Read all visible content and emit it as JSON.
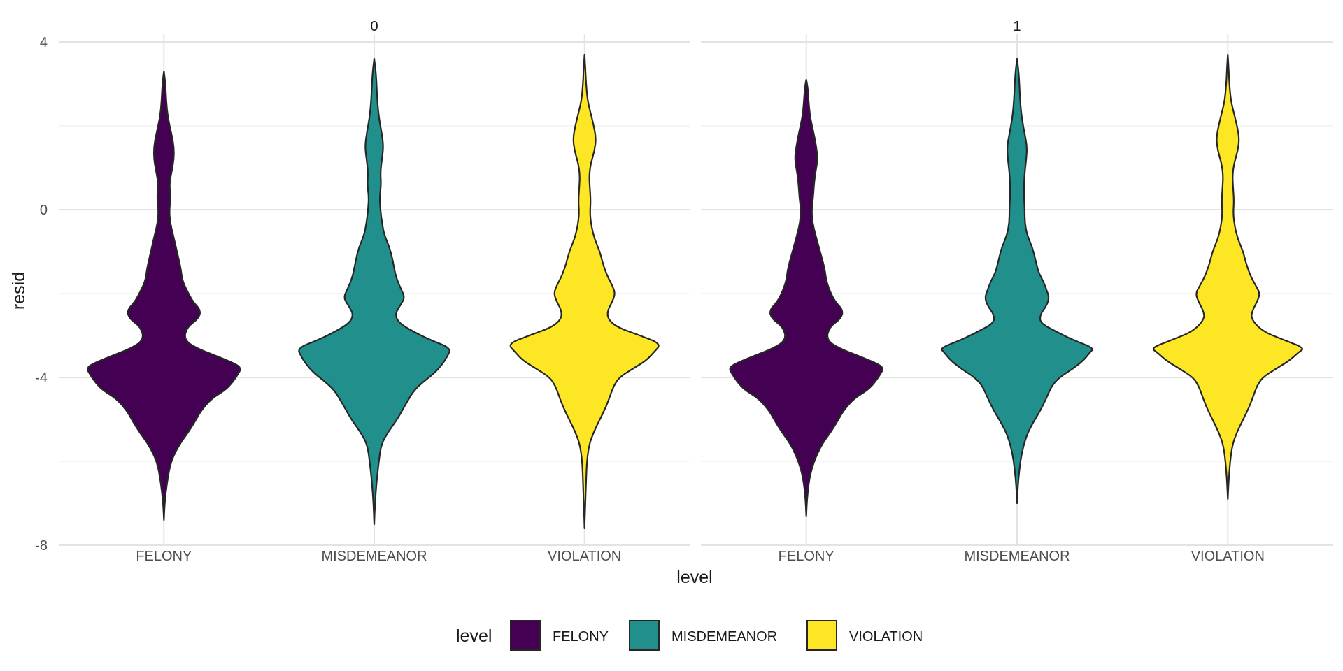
{
  "chart_data": {
    "type": "violin",
    "facet_variable_values": [
      "0",
      "1"
    ],
    "categories": [
      "FELONY",
      "MISDEMEANOR",
      "VIOLATION"
    ],
    "xlabel": "level",
    "ylabel": "resid",
    "ylim": [
      -8,
      4
    ],
    "y_ticks": [
      "4",
      "0",
      "-4",
      "-8"
    ],
    "y_tick_values": [
      4,
      0,
      -4,
      -8
    ],
    "grid": true,
    "legend": {
      "title": "level",
      "position": "bottom",
      "items": [
        {
          "label": "FELONY",
          "color": "#440154"
        },
        {
          "label": "MISDEMEANOR",
          "color": "#21908C"
        },
        {
          "label": "VIOLATION",
          "color": "#FDE725"
        }
      ]
    },
    "panels": [
      {
        "facet": "0",
        "violins": [
          {
            "category": "FELONY",
            "color": "#440154",
            "y_min": -7.4,
            "y_max": 3.3,
            "profile": [
              [
                -7.4,
                0.0
              ],
              [
                -7.0,
                0.01
              ],
              [
                -6.5,
                0.04
              ],
              [
                -6.0,
                0.09
              ],
              [
                -5.6,
                0.2
              ],
              [
                -5.3,
                0.32
              ],
              [
                -5.0,
                0.42
              ],
              [
                -4.8,
                0.48
              ],
              [
                -4.5,
                0.62
              ],
              [
                -4.3,
                0.8
              ],
              [
                -4.1,
                0.9
              ],
              [
                -3.9,
                0.97
              ],
              [
                -3.8,
                1.0
              ],
              [
                -3.7,
                0.96
              ],
              [
                -3.5,
                0.7
              ],
              [
                -3.3,
                0.42
              ],
              [
                -3.1,
                0.26
              ],
              [
                -2.8,
                0.3
              ],
              [
                -2.6,
                0.45
              ],
              [
                -2.4,
                0.48
              ],
              [
                -2.2,
                0.38
              ],
              [
                -2.0,
                0.32
              ],
              [
                -1.7,
                0.24
              ],
              [
                -1.4,
                0.22
              ],
              [
                -1.0,
                0.17
              ],
              [
                -0.6,
                0.12
              ],
              [
                -0.3,
                0.08
              ],
              [
                0.0,
                0.07
              ],
              [
                0.3,
                0.09
              ],
              [
                0.6,
                0.07
              ],
              [
                0.9,
                0.1
              ],
              [
                1.2,
                0.13
              ],
              [
                1.5,
                0.13
              ],
              [
                1.8,
                0.1
              ],
              [
                2.2,
                0.05
              ],
              [
                2.6,
                0.03
              ],
              [
                3.0,
                0.02
              ],
              [
                3.3,
                0.0
              ]
            ]
          },
          {
            "category": "MISDEMEANOR",
            "color": "#21908C",
            "y_min": -7.5,
            "y_max": 3.6,
            "profile": [
              [
                -7.5,
                0.0
              ],
              [
                -7.0,
                0.01
              ],
              [
                -6.5,
                0.03
              ],
              [
                -6.0,
                0.06
              ],
              [
                -5.6,
                0.09
              ],
              [
                -5.3,
                0.18
              ],
              [
                -5.0,
                0.3
              ],
              [
                -4.6,
                0.42
              ],
              [
                -4.3,
                0.52
              ],
              [
                -4.1,
                0.64
              ],
              [
                -3.9,
                0.78
              ],
              [
                -3.7,
                0.88
              ],
              [
                -3.5,
                0.95
              ],
              [
                -3.3,
                1.0
              ],
              [
                -3.1,
                0.72
              ],
              [
                -2.9,
                0.5
              ],
              [
                -2.7,
                0.32
              ],
              [
                -2.5,
                0.27
              ],
              [
                -2.3,
                0.33
              ],
              [
                -2.1,
                0.4
              ],
              [
                -1.9,
                0.35
              ],
              [
                -1.6,
                0.28
              ],
              [
                -1.2,
                0.24
              ],
              [
                -0.9,
                0.2
              ],
              [
                -0.6,
                0.13
              ],
              [
                -0.3,
                0.1
              ],
              [
                0.0,
                0.08
              ],
              [
                0.3,
                0.07
              ],
              [
                0.6,
                0.09
              ],
              [
                0.9,
                0.08
              ],
              [
                1.2,
                0.1
              ],
              [
                1.5,
                0.12
              ],
              [
                1.8,
                0.1
              ],
              [
                2.2,
                0.06
              ],
              [
                2.6,
                0.04
              ],
              [
                3.0,
                0.03
              ],
              [
                3.3,
                0.02
              ],
              [
                3.6,
                0.0
              ]
            ]
          },
          {
            "category": "VIOLATION",
            "color": "#FDE725",
            "y_min": -7.6,
            "y_max": 3.7,
            "profile": [
              [
                -7.6,
                0.0
              ],
              [
                -7.0,
                0.01
              ],
              [
                -6.5,
                0.02
              ],
              [
                -6.0,
                0.03
              ],
              [
                -5.6,
                0.06
              ],
              [
                -5.3,
                0.12
              ],
              [
                -5.0,
                0.2
              ],
              [
                -4.7,
                0.28
              ],
              [
                -4.4,
                0.34
              ],
              [
                -4.2,
                0.38
              ],
              [
                -4.0,
                0.45
              ],
              [
                -3.8,
                0.62
              ],
              [
                -3.6,
                0.8
              ],
              [
                -3.4,
                0.9
              ],
              [
                -3.2,
                1.0
              ],
              [
                -3.0,
                0.72
              ],
              [
                -2.8,
                0.42
              ],
              [
                -2.6,
                0.3
              ],
              [
                -2.4,
                0.3
              ],
              [
                -2.2,
                0.36
              ],
              [
                -2.0,
                0.4
              ],
              [
                -1.8,
                0.36
              ],
              [
                -1.6,
                0.3
              ],
              [
                -1.3,
                0.24
              ],
              [
                -1.0,
                0.2
              ],
              [
                -0.7,
                0.13
              ],
              [
                -0.4,
                0.09
              ],
              [
                -0.1,
                0.07
              ],
              [
                0.2,
                0.08
              ],
              [
                0.5,
                0.07
              ],
              [
                0.8,
                0.06
              ],
              [
                1.1,
                0.08
              ],
              [
                1.4,
                0.13
              ],
              [
                1.7,
                0.15
              ],
              [
                2.0,
                0.12
              ],
              [
                2.3,
                0.08
              ],
              [
                2.6,
                0.04
              ],
              [
                3.0,
                0.02
              ],
              [
                3.4,
                0.01
              ],
              [
                3.7,
                0.0
              ]
            ]
          }
        ]
      },
      {
        "facet": "1",
        "violins": [
          {
            "category": "FELONY",
            "color": "#440154",
            "y_min": -7.3,
            "y_max": 3.1,
            "profile": [
              [
                -7.3,
                0.0
              ],
              [
                -6.9,
                0.01
              ],
              [
                -6.4,
                0.04
              ],
              [
                -6.0,
                0.1
              ],
              [
                -5.6,
                0.2
              ],
              [
                -5.3,
                0.32
              ],
              [
                -5.0,
                0.42
              ],
              [
                -4.8,
                0.48
              ],
              [
                -4.5,
                0.62
              ],
              [
                -4.3,
                0.8
              ],
              [
                -4.1,
                0.9
              ],
              [
                -3.9,
                0.97
              ],
              [
                -3.8,
                1.0
              ],
              [
                -3.7,
                0.96
              ],
              [
                -3.5,
                0.7
              ],
              [
                -3.3,
                0.42
              ],
              [
                -3.1,
                0.26
              ],
              [
                -2.8,
                0.3
              ],
              [
                -2.6,
                0.45
              ],
              [
                -2.4,
                0.48
              ],
              [
                -2.2,
                0.38
              ],
              [
                -2.0,
                0.32
              ],
              [
                -1.7,
                0.26
              ],
              [
                -1.4,
                0.24
              ],
              [
                -1.0,
                0.18
              ],
              [
                -0.6,
                0.12
              ],
              [
                -0.3,
                0.08
              ],
              [
                0.0,
                0.07
              ],
              [
                0.3,
                0.09
              ],
              [
                0.6,
                0.1
              ],
              [
                0.9,
                0.12
              ],
              [
                1.2,
                0.15
              ],
              [
                1.5,
                0.13
              ],
              [
                1.8,
                0.1
              ],
              [
                2.2,
                0.05
              ],
              [
                2.6,
                0.03
              ],
              [
                2.9,
                0.02
              ],
              [
                3.1,
                0.0
              ]
            ]
          },
          {
            "category": "MISDEMEANOR",
            "color": "#21908C",
            "y_min": -7.0,
            "y_max": 3.6,
            "profile": [
              [
                -7.0,
                0.0
              ],
              [
                -6.6,
                0.01
              ],
              [
                -6.2,
                0.03
              ],
              [
                -5.8,
                0.06
              ],
              [
                -5.4,
                0.12
              ],
              [
                -5.1,
                0.2
              ],
              [
                -4.8,
                0.3
              ],
              [
                -4.5,
                0.38
              ],
              [
                -4.2,
                0.45
              ],
              [
                -4.0,
                0.55
              ],
              [
                -3.8,
                0.72
              ],
              [
                -3.6,
                0.86
              ],
              [
                -3.4,
                0.95
              ],
              [
                -3.3,
                1.0
              ],
              [
                -3.1,
                0.72
              ],
              [
                -2.9,
                0.5
              ],
              [
                -2.7,
                0.3
              ],
              [
                -2.5,
                0.3
              ],
              [
                -2.3,
                0.38
              ],
              [
                -2.1,
                0.42
              ],
              [
                -1.9,
                0.38
              ],
              [
                -1.7,
                0.34
              ],
              [
                -1.5,
                0.28
              ],
              [
                -1.2,
                0.24
              ],
              [
                -0.9,
                0.2
              ],
              [
                -0.6,
                0.13
              ],
              [
                -0.3,
                0.1
              ],
              [
                0.0,
                0.1
              ],
              [
                0.3,
                0.09
              ],
              [
                0.6,
                0.09
              ],
              [
                0.9,
                0.1
              ],
              [
                1.2,
                0.12
              ],
              [
                1.5,
                0.13
              ],
              [
                1.8,
                0.1
              ],
              [
                2.2,
                0.06
              ],
              [
                2.6,
                0.04
              ],
              [
                3.0,
                0.03
              ],
              [
                3.3,
                0.02
              ],
              [
                3.6,
                0.0
              ]
            ]
          },
          {
            "category": "VIOLATION",
            "color": "#FDE725",
            "y_min": -6.9,
            "y_max": 3.7,
            "profile": [
              [
                -6.9,
                0.0
              ],
              [
                -6.5,
                0.01
              ],
              [
                -6.0,
                0.03
              ],
              [
                -5.6,
                0.06
              ],
              [
                -5.3,
                0.12
              ],
              [
                -5.0,
                0.2
              ],
              [
                -4.7,
                0.28
              ],
              [
                -4.4,
                0.34
              ],
              [
                -4.2,
                0.38
              ],
              [
                -4.0,
                0.45
              ],
              [
                -3.8,
                0.62
              ],
              [
                -3.6,
                0.8
              ],
              [
                -3.4,
                0.92
              ],
              [
                -3.3,
                1.0
              ],
              [
                -3.1,
                0.72
              ],
              [
                -2.9,
                0.45
              ],
              [
                -2.6,
                0.3
              ],
              [
                -2.4,
                0.32
              ],
              [
                -2.2,
                0.38
              ],
              [
                -2.0,
                0.42
              ],
              [
                -1.8,
                0.36
              ],
              [
                -1.6,
                0.3
              ],
              [
                -1.3,
                0.24
              ],
              [
                -1.0,
                0.2
              ],
              [
                -0.7,
                0.13
              ],
              [
                -0.4,
                0.09
              ],
              [
                -0.1,
                0.07
              ],
              [
                0.2,
                0.08
              ],
              [
                0.5,
                0.07
              ],
              [
                0.8,
                0.06
              ],
              [
                1.1,
                0.08
              ],
              [
                1.4,
                0.13
              ],
              [
                1.7,
                0.15
              ],
              [
                2.0,
                0.12
              ],
              [
                2.3,
                0.08
              ],
              [
                2.6,
                0.04
              ],
              [
                3.0,
                0.02
              ],
              [
                3.4,
                0.01
              ],
              [
                3.7,
                0.0
              ]
            ]
          }
        ]
      }
    ]
  }
}
